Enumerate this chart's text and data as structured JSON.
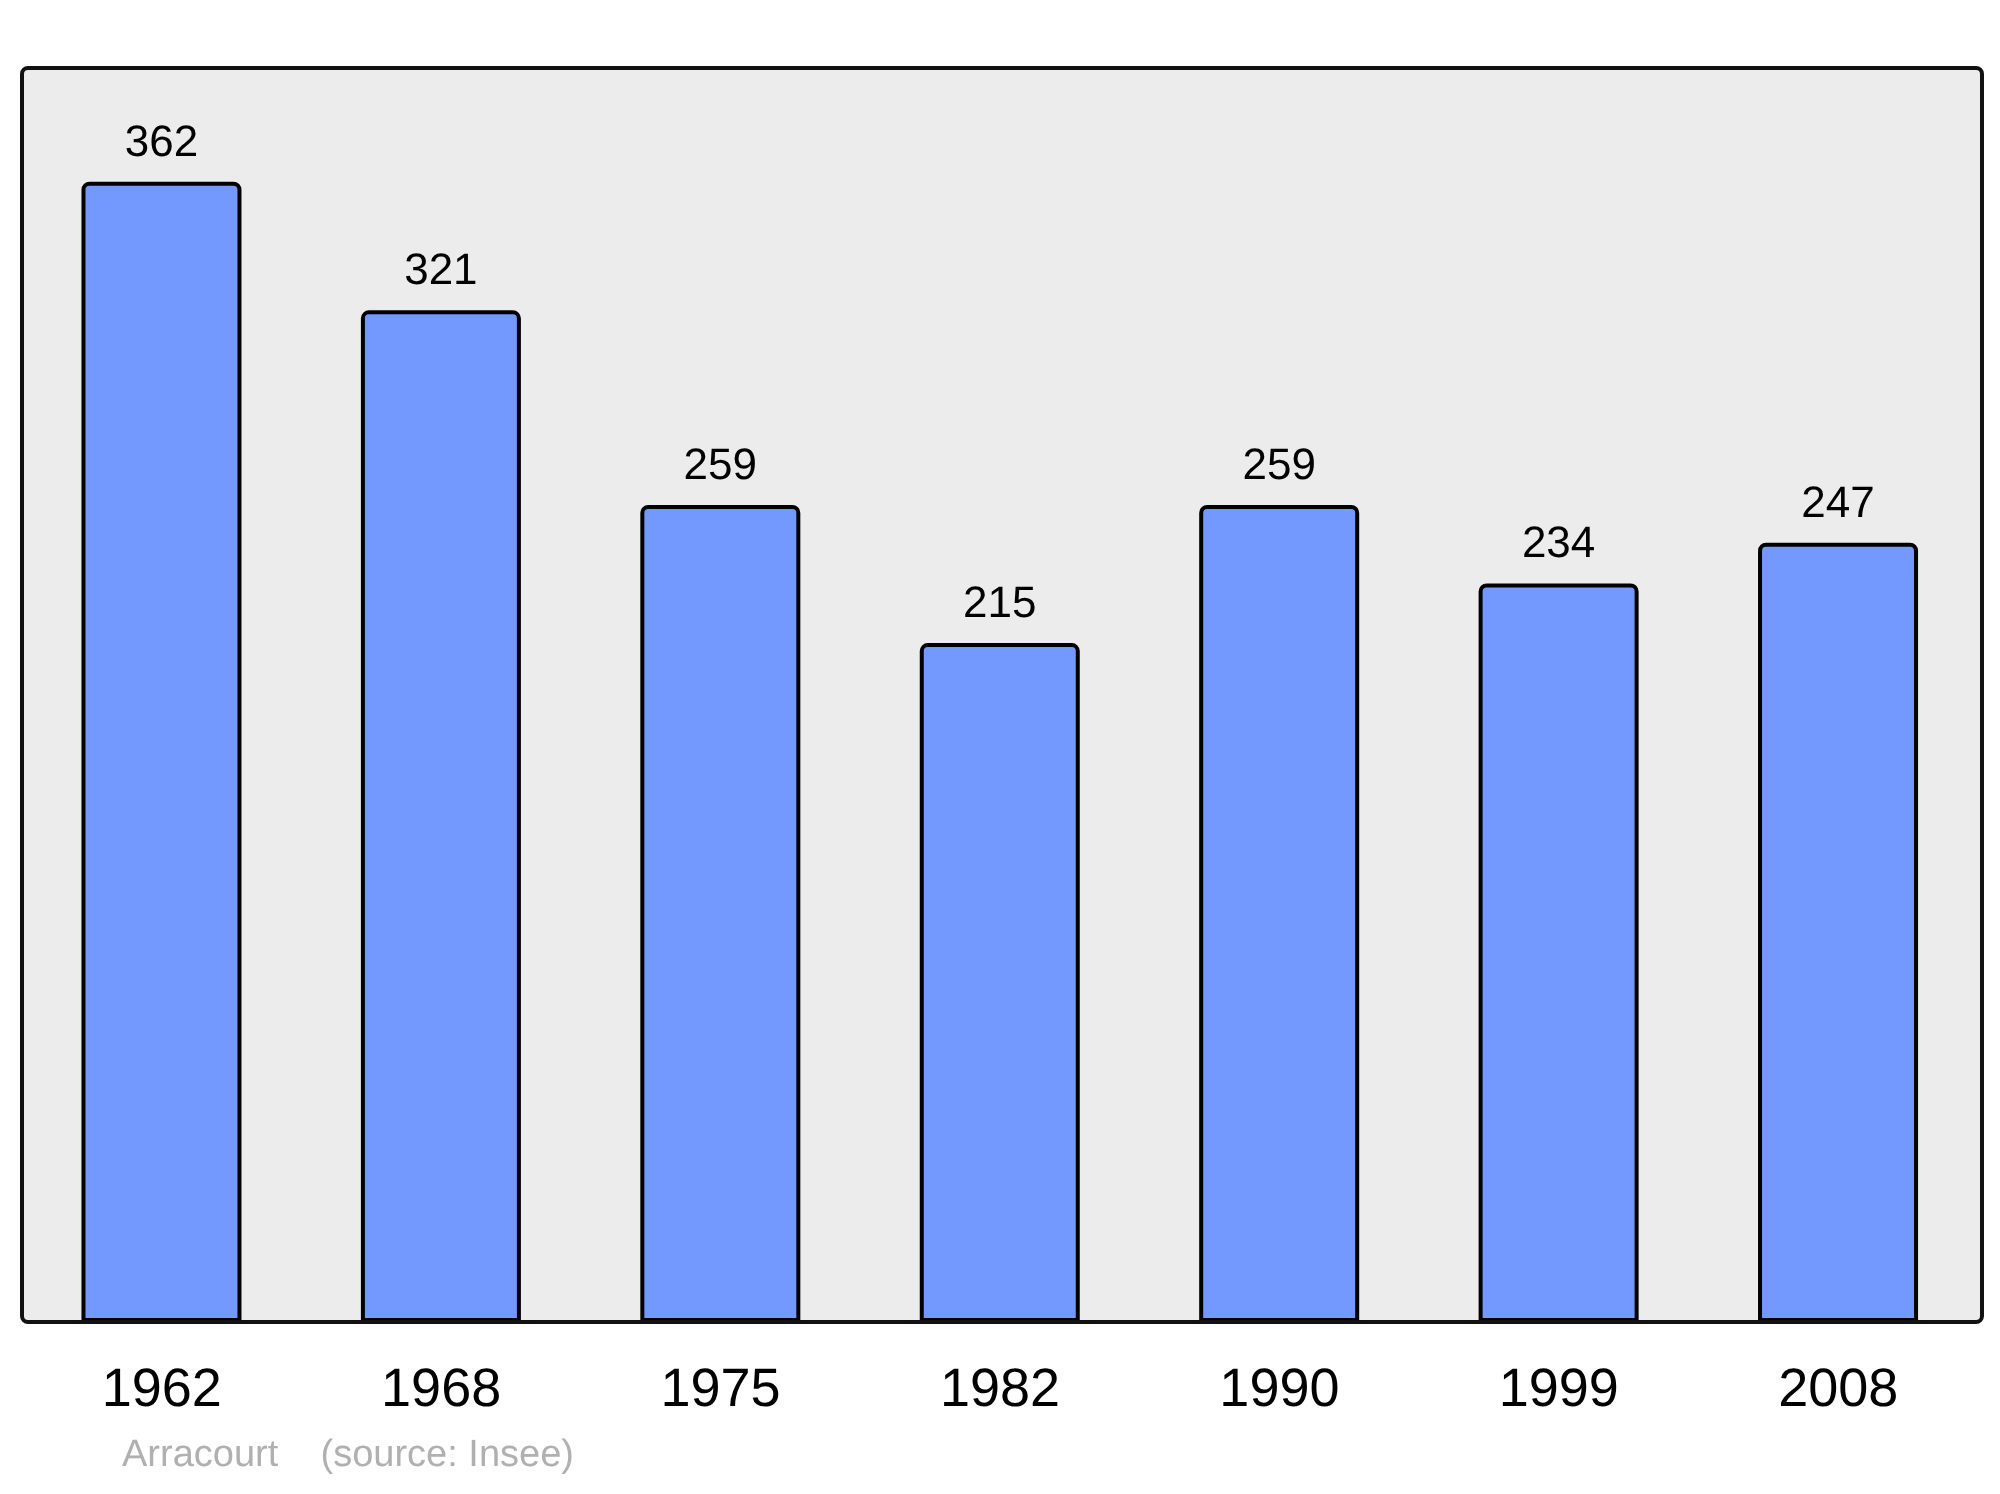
{
  "chart_data": {
    "type": "bar",
    "categories": [
      "1962",
      "1968",
      "1975",
      "1982",
      "1990",
      "1999",
      "2008"
    ],
    "values": [
      362,
      321,
      259,
      215,
      259,
      234,
      247
    ],
    "color": "#7399ff",
    "data_labels": true,
    "annotations": [
      "Arracourt    (source: Insee)"
    ]
  }
}
